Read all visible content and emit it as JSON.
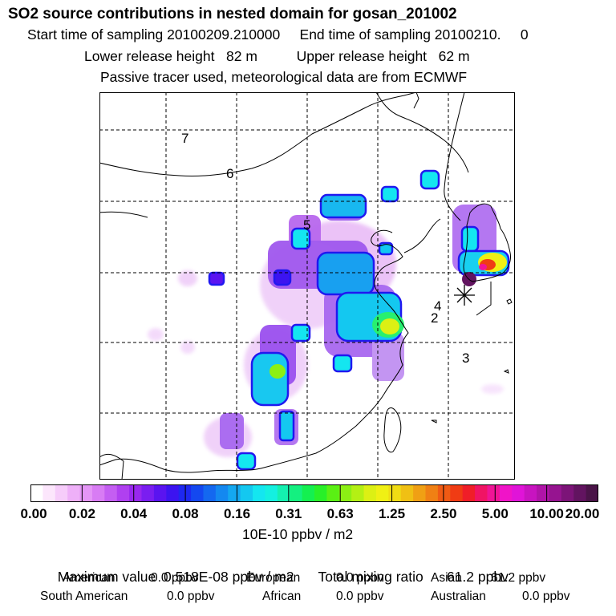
{
  "header": {
    "title": "SO2 source contributions in nested domain for gosan_201002",
    "line1": "Start time of sampling 20100209.210000     End time of sampling 20100210.     0",
    "line2": "Lower release height   82 m          Upper release height   62 m",
    "line3": "Passive tracer used, meteorological data are from ECMWF"
  },
  "map": {
    "labels": [
      "7",
      "6",
      "5",
      "4",
      "2",
      "3"
    ],
    "colors": {
      "land_outline": "#000000",
      "grid": "#000000",
      "receptor": "#000000"
    }
  },
  "colorbar": {
    "colors": [
      "#ffffff",
      "#fce6fc",
      "#f6ccfa",
      "#eeb0f8",
      "#e496f6",
      "#d87cf4",
      "#c45ef2",
      "#b040f0",
      "#9828ee",
      "#7a1ef0",
      "#5a14f0",
      "#3c14f0",
      "#1e28f0",
      "#1448f0",
      "#1468f0",
      "#1488f0",
      "#14a8f0",
      "#14c8f0",
      "#14e6f0",
      "#14f0e0",
      "#14f0b0",
      "#14f080",
      "#14f050",
      "#28f028",
      "#5af014",
      "#8cf014",
      "#b4f014",
      "#dcf014",
      "#f0f014",
      "#f0dc14",
      "#f0c014",
      "#f0a014",
      "#f08014",
      "#f05a14",
      "#f03c14",
      "#f01e28",
      "#f01464",
      "#f01496",
      "#f014c8",
      "#e014d8",
      "#c814c0",
      "#b014a8",
      "#961490",
      "#7c1478",
      "#621460",
      "#4a1448"
    ],
    "tick_labels": [
      "0.00",
      "0.02",
      "0.04",
      "0.08",
      "0.16",
      "0.31",
      "0.63",
      "1.25",
      "2.50",
      "5.00",
      "10.00",
      "20.00"
    ]
  },
  "unit": "10E-10 ppbv / m2",
  "summary": {
    "max_label": "Maximum value  0.518E-08 ppbv / m2",
    "total_label": "Total mixing ratio      61.2 ppbv"
  },
  "regions": {
    "american": "American",
    "american_value": "0.0 ppbv",
    "european": "European",
    "european_value": "0.0 ppbv",
    "asian": "Asian",
    "asian_value": "61.2 ppbv",
    "south_american": "South American",
    "south_american_value": "0.0 ppbv",
    "african": "African",
    "african_value": "0.0 ppbv",
    "australian": "Australian",
    "australian_value": "0.0 ppbv"
  }
}
